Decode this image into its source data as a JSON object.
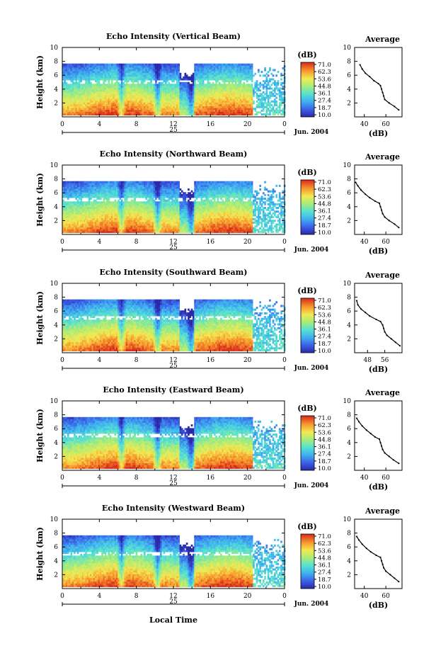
{
  "figure": {
    "date_label": "Jun. 2004",
    "day_label": "25",
    "x_axis_label": "Local Time",
    "y_axis_label": "Height (km)",
    "colorbar_unit": "(dB)",
    "colorbar_ticks": [
      "71.0",
      "62.3",
      "53.6",
      "44.8",
      "36.1",
      "27.4",
      "18.7",
      "10.0"
    ],
    "average_title": "Average",
    "average_xlabel": "(dB)"
  },
  "chart_data": [
    {
      "type": "heatmap",
      "title": "Echo Intensity (Vertical Beam)",
      "x_ticks": [
        "0",
        "4",
        "8",
        "12",
        "16",
        "20",
        "0"
      ],
      "xlim": [
        0,
        24
      ],
      "ylim": [
        0,
        10
      ],
      "y_ticks": [
        "2",
        "4",
        "6",
        "8",
        "10"
      ],
      "color_range": [
        10.0,
        71.0
      ],
      "average": {
        "title": "Average",
        "x_ticks": [
          "40",
          "60"
        ],
        "xlim": [
          31,
          75
        ],
        "profile": [
          [
            72,
            1.0
          ],
          [
            68,
            1.5
          ],
          [
            63,
            2.0
          ],
          [
            59,
            2.5
          ],
          [
            58,
            3.0
          ],
          [
            57,
            3.5
          ],
          [
            56,
            4.0
          ],
          [
            55,
            4.5
          ],
          [
            53,
            4.8
          ],
          [
            49,
            5.2
          ],
          [
            45,
            5.8
          ],
          [
            41,
            6.3
          ],
          [
            38,
            6.9
          ],
          [
            36,
            7.5
          ]
        ]
      }
    },
    {
      "type": "heatmap",
      "title": "Echo Intensity (Northward Beam)",
      "x_ticks": [
        "0",
        "4",
        "8",
        "12",
        "16",
        "20",
        "0"
      ],
      "xlim": [
        0,
        24
      ],
      "ylim": [
        0,
        10
      ],
      "y_ticks": [
        "2",
        "4",
        "6",
        "8",
        "10"
      ],
      "color_range": [
        10.0,
        71.0
      ],
      "average": {
        "title": "Average",
        "x_ticks": [
          "40",
          "60"
        ],
        "xlim": [
          31,
          75
        ],
        "profile": [
          [
            72,
            1.0
          ],
          [
            68,
            1.5
          ],
          [
            63,
            2.0
          ],
          [
            59,
            2.5
          ],
          [
            57,
            3.0
          ],
          [
            56,
            3.5
          ],
          [
            55,
            4.0
          ],
          [
            54,
            4.5
          ],
          [
            50,
            4.8
          ],
          [
            45,
            5.3
          ],
          [
            41,
            5.8
          ],
          [
            37,
            6.4
          ],
          [
            34,
            7.0
          ],
          [
            32,
            7.5
          ]
        ]
      }
    },
    {
      "type": "heatmap",
      "title": "Echo Intensity (Southward Beam)",
      "x_ticks": [
        "0",
        "4",
        "8",
        "12",
        "16",
        "20",
        "0"
      ],
      "xlim": [
        0,
        24
      ],
      "ylim": [
        0,
        10
      ],
      "y_ticks": [
        "2",
        "4",
        "6",
        "8",
        "10"
      ],
      "color_range": [
        10.0,
        71.0
      ],
      "average": {
        "title": "Average",
        "x_ticks": [
          "48",
          "56"
        ],
        "xlim": [
          42,
          64
        ],
        "profile": [
          [
            63,
            1.0
          ],
          [
            61,
            1.5
          ],
          [
            59,
            2.0
          ],
          [
            57,
            2.5
          ],
          [
            56,
            3.0
          ],
          [
            55.5,
            3.5
          ],
          [
            55,
            4.0
          ],
          [
            54,
            4.5
          ],
          [
            52,
            4.8
          ],
          [
            49,
            5.3
          ],
          [
            47,
            5.8
          ],
          [
            45,
            6.3
          ],
          [
            43.5,
            6.9
          ],
          [
            43,
            7.5
          ]
        ]
      }
    },
    {
      "type": "heatmap",
      "title": "Echo Intensity (Eastward Beam)",
      "x_ticks": [
        "0",
        "4",
        "8",
        "12",
        "16",
        "20",
        "0"
      ],
      "xlim": [
        0,
        24
      ],
      "ylim": [
        0,
        10
      ],
      "y_ticks": [
        "2",
        "4",
        "6",
        "8",
        "10"
      ],
      "color_range": [
        10.0,
        71.0
      ],
      "average": {
        "title": "Average",
        "x_ticks": [
          "40",
          "60"
        ],
        "xlim": [
          31,
          75
        ],
        "profile": [
          [
            72,
            1.0
          ],
          [
            67,
            1.5
          ],
          [
            63,
            2.0
          ],
          [
            59,
            2.5
          ],
          [
            57,
            3.0
          ],
          [
            56,
            3.5
          ],
          [
            55,
            4.0
          ],
          [
            54,
            4.5
          ],
          [
            50,
            4.8
          ],
          [
            46,
            5.3
          ],
          [
            42,
            5.8
          ],
          [
            38,
            6.4
          ],
          [
            35,
            7.0
          ],
          [
            33,
            7.5
          ]
        ]
      }
    },
    {
      "type": "heatmap",
      "title": "Echo Intensity (Westward Beam)",
      "x_ticks": [
        "0",
        "4",
        "8",
        "12",
        "16",
        "20",
        "0"
      ],
      "xlim": [
        0,
        24
      ],
      "ylim": [
        0,
        10
      ],
      "y_ticks": [
        "2",
        "4",
        "6",
        "8",
        "10"
      ],
      "color_range": [
        10.0,
        71.0
      ],
      "average": {
        "title": "Average",
        "x_ticks": [
          "40",
          "60"
        ],
        "xlim": [
          31,
          75
        ],
        "profile": [
          [
            72,
            1.0
          ],
          [
            68,
            1.5
          ],
          [
            64,
            2.0
          ],
          [
            60,
            2.5
          ],
          [
            58,
            3.0
          ],
          [
            57,
            3.5
          ],
          [
            56,
            4.0
          ],
          [
            55,
            4.5
          ],
          [
            51,
            4.8
          ],
          [
            46,
            5.3
          ],
          [
            42,
            5.8
          ],
          [
            38,
            6.4
          ],
          [
            35,
            7.0
          ],
          [
            33,
            7.5
          ]
        ]
      }
    }
  ]
}
